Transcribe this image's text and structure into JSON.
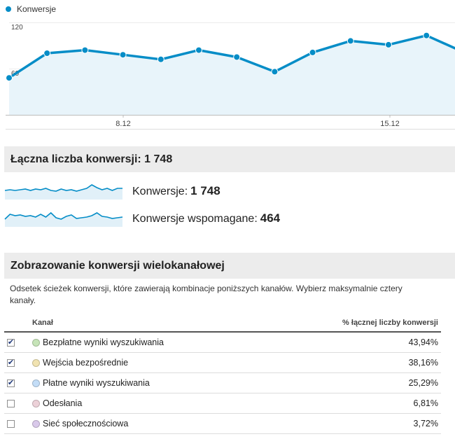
{
  "chart_legend": {
    "series_label": "Konwersje",
    "color": "#058dc7"
  },
  "chart_data": {
    "type": "area",
    "series": [
      {
        "name": "Konwersje",
        "values": [
          48,
          80,
          84,
          78,
          72,
          84,
          75,
          56,
          81,
          96,
          91,
          103,
          81
        ]
      }
    ],
    "x_tick_labels": [
      "8.12",
      "15.12"
    ],
    "y_tick_labels": [
      "120",
      "60"
    ],
    "ylim": [
      0,
      120
    ],
    "grid": true,
    "color": "#058dc7",
    "fill_color": "#e8f4fa"
  },
  "total": {
    "heading": "Łączna liczba konwersji: 1 748"
  },
  "sparklines": [
    {
      "label": "Konwersje:",
      "value": "1 748",
      "values": [
        10,
        11,
        10,
        11,
        12,
        10,
        12,
        11,
        13,
        10,
        9,
        12,
        10,
        11,
        9,
        11,
        13,
        18,
        14,
        11,
        13,
        10,
        13,
        13
      ]
    },
    {
      "label": "Konwersje wspomagane:",
      "value": "464",
      "values": [
        8,
        15,
        13,
        14,
        12,
        13,
        11,
        15,
        11,
        17,
        10,
        8,
        12,
        14,
        9,
        10,
        11,
        13,
        17,
        12,
        11,
        9,
        10,
        11
      ]
    }
  ],
  "multichannel": {
    "heading": "Zobrazowanie konwersji wielokanałowej",
    "description": "Odsetek ścieżek konwersji, które zawierają kombinacje poniższych kanałów. Wybierz maksymalnie cztery kanały.",
    "columns": {
      "channel": "Kanał",
      "percent": "% łącznej liczby konwersji"
    },
    "rows": [
      {
        "checked": true,
        "color": "#c6e4b8",
        "name": "Bezpłatne wyniki wyszukiwania",
        "percent": "43,94%"
      },
      {
        "checked": true,
        "color": "#f1e3b1",
        "name": "Wejścia bezpośrednie",
        "percent": "38,16%"
      },
      {
        "checked": true,
        "color": "#c3ddf7",
        "name": "Płatne wyniki wyszukiwania",
        "percent": "25,29%"
      },
      {
        "checked": false,
        "color": "#ecd1d8",
        "name": "Odesłania",
        "percent": "6,81%"
      },
      {
        "checked": false,
        "color": "#d9c9ea",
        "name": "Sieć społecznościowa",
        "percent": "3,72%"
      }
    ]
  }
}
